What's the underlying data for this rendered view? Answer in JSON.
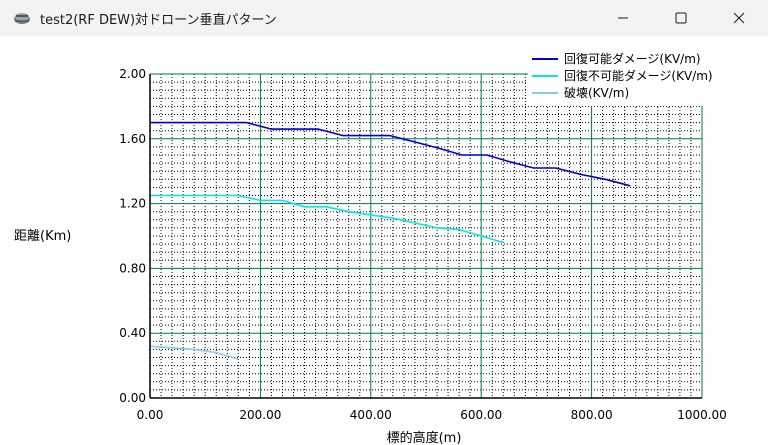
{
  "window": {
    "title": "test2(RF DEW)対ドローン垂直パターン",
    "app_icon": "drone-app-icon",
    "controls": [
      "minimize-icon",
      "maximize-icon",
      "close-icon"
    ]
  },
  "chart_data": {
    "type": "line",
    "title": "",
    "xlabel": "標的高度(m)",
    "ylabel": "距離(Km)",
    "xlim": [
      0,
      1000
    ],
    "ylim": [
      0,
      2
    ],
    "x_ticks": [
      "0.00",
      "200.00",
      "400.00",
      "600.00",
      "800.00",
      "1000.00"
    ],
    "y_ticks": [
      "0.00",
      "0.40",
      "0.80",
      "1.20",
      "1.60",
      "2.00"
    ],
    "grid": true,
    "grid_major_color": "#007a3d",
    "legend_position": "top-right",
    "series": [
      {
        "name": "回復可能ダメージ(KV/m)",
        "color": "#0000c8",
        "x": [
          0,
          40,
          80,
          120,
          175,
          220,
          260,
          305,
          350,
          395,
          435,
          480,
          525,
          565,
          610,
          650,
          695,
          735,
          780,
          825,
          870
        ],
        "y": [
          1.7,
          1.7,
          1.7,
          1.7,
          1.7,
          1.66,
          1.66,
          1.66,
          1.62,
          1.62,
          1.62,
          1.58,
          1.54,
          1.5,
          1.5,
          1.46,
          1.42,
          1.42,
          1.38,
          1.35,
          1.31
        ]
      },
      {
        "name": "回復不可能ダメージ(KV/m)",
        "color": "#00e8e8",
        "x": [
          0,
          40,
          80,
          120,
          160,
          200,
          240,
          280,
          320,
          360,
          400,
          440,
          480,
          520,
          560,
          600,
          640
        ],
        "y": [
          1.25,
          1.25,
          1.25,
          1.25,
          1.25,
          1.22,
          1.22,
          1.18,
          1.18,
          1.15,
          1.13,
          1.11,
          1.08,
          1.05,
          1.04,
          1.0,
          0.96
        ]
      },
      {
        "name": "破壊(KV/m)",
        "color": "#87cee8",
        "x": [
          0,
          40,
          80,
          120,
          160
        ],
        "y": [
          0.32,
          0.31,
          0.3,
          0.28,
          0.24
        ]
      }
    ]
  }
}
